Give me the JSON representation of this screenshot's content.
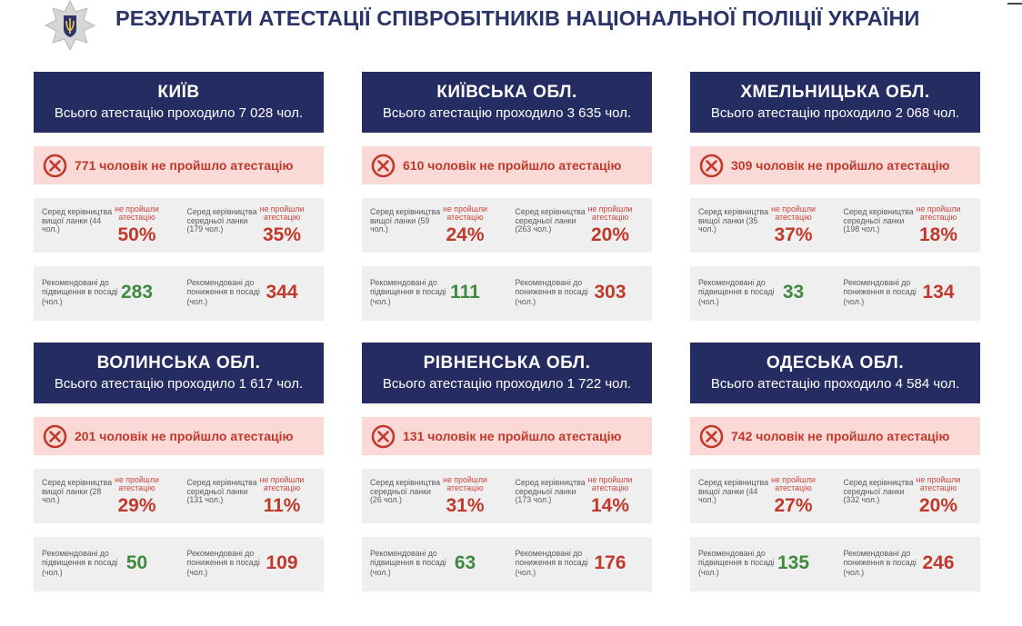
{
  "header": {
    "title": "РЕЗУЛЬТАТИ АТЕСТАЦІЇ СПІВРОБІТНИКІВ НАЦІОНАЛЬНОЇ ПОЛІЦІЇ УКРАЇНИ",
    "emblem_icon": "police-emblem-icon"
  },
  "colors": {
    "header_bg": "#252c62",
    "fail_bg": "#fad9d6",
    "fail_text": "#c0392b",
    "panel_bg": "#efefef",
    "promote": "#3f8a3f",
    "demote": "#c0392b"
  },
  "regions": [
    {
      "name": "КИЇВ",
      "total": "Всього атестацію проходило 7 028 чол.",
      "failed": "771 чоловік не пройшло атестацію",
      "left_stat": {
        "label": "Серед керівництва вищої ланки (44 чол.)",
        "top": "не пройшли атестацію",
        "pct": "50%"
      },
      "right_stat": {
        "label": "Серед керівництва середньої ланки (179 чол.)",
        "top": "не пройшли атестацію",
        "pct": "35%"
      },
      "promote": {
        "label": "Рекомендовані до підвищення в посаді (чол.)",
        "value": "283"
      },
      "demote": {
        "label": "Рекомендовані до пониження в посаді (чол.)",
        "value": "344"
      }
    },
    {
      "name": "КИЇВСЬКА ОБЛ.",
      "total": "Всього атестацію проходило 3 635 чол.",
      "failed": "610 чоловік не пройшло атестацію",
      "left_stat": {
        "label": "Серед керівництва вищої ланки (59 чол.)",
        "top": "не пройшли атестацію",
        "pct": "24%"
      },
      "right_stat": {
        "label": "Серед керівництва середньої ланки (263 чол.)",
        "top": "не пройшли атестацію",
        "pct": "20%"
      },
      "promote": {
        "label": "Рекомендовані до підвищення в посаді (чол.)",
        "value": "111"
      },
      "demote": {
        "label": "Рекомендовані до пониження в посаді (чол.)",
        "value": "303"
      }
    },
    {
      "name": "ХМЕЛЬНИЦЬКА ОБЛ.",
      "total": "Всього атестацію проходило 2 068 чол.",
      "failed": "309 чоловік не пройшло атестацію",
      "left_stat": {
        "label": "Серед керівництва вищої ланки (35 чол.)",
        "top": "не пройшли атестацію",
        "pct": "37%"
      },
      "right_stat": {
        "label": "Серед керівництва середньої ланки (198 чол.)",
        "top": "не пройшли атестацію",
        "pct": "18%"
      },
      "promote": {
        "label": "Рекомендовані до підвищення в посаді (чол.)",
        "value": "33"
      },
      "demote": {
        "label": "Рекомендовані до пониження в посаді (чол.)",
        "value": "134"
      }
    },
    {
      "name": "ВОЛИНСЬКА ОБЛ.",
      "total": "Всього атестацію проходило 1 617 чол.",
      "failed": "201 чоловік не пройшло атестацію",
      "left_stat": {
        "label": "Серед керівництва вищої ланки (28 чол.)",
        "top": "не пройшли атестацію",
        "pct": "29%"
      },
      "right_stat": {
        "label": "Серед керівництва середньої ланки (131 чол.)",
        "top": "не пройшли атестацію",
        "pct": "11%"
      },
      "promote": {
        "label": "Рекомендовані до підвищення в посаді (чол.)",
        "value": "50"
      },
      "demote": {
        "label": "Рекомендовані до пониження в посаді (чол.)",
        "value": "109"
      }
    },
    {
      "name": "РІВНЕНСЬКА ОБЛ.",
      "total": "Всього атестацію проходило 1 722 чол.",
      "failed": "131 чоловік не пройшло атестацію",
      "left_stat": {
        "label": "Серед керівництва середньої ланки (26 чол.)",
        "top": "не пройшли атестацію",
        "pct": "31%"
      },
      "right_stat": {
        "label": "Серед керівництва середньої ланки (173 чол.)",
        "top": "не пройшли атестацію",
        "pct": "14%"
      },
      "promote": {
        "label": "Рекомендовані до підвищення в посаді (чол.)",
        "value": "63"
      },
      "demote": {
        "label": "Рекомендовані до пониження в посаді (чол.)",
        "value": "176"
      }
    },
    {
      "name": "ОДЕСЬКА ОБЛ.",
      "total": "Всього атестацію проходило 4 584 чол.",
      "failed": "742 чоловік не пройшло атестацію",
      "left_stat": {
        "label": "Серед керівництва вищої ланки (44 чол.)",
        "top": "не пройшли атестацію",
        "pct": "27%"
      },
      "right_stat": {
        "label": "Серед керівництва середньої ланки (332 чол.)",
        "top": "не пройшли атестацію",
        "pct": "20%"
      },
      "promote": {
        "label": "Рекомендовані до підвищення в посаді (чол.)",
        "value": "135"
      },
      "demote": {
        "label": "Рекомендовані до пониження в посаді (чол.)",
        "value": "246"
      }
    }
  ]
}
